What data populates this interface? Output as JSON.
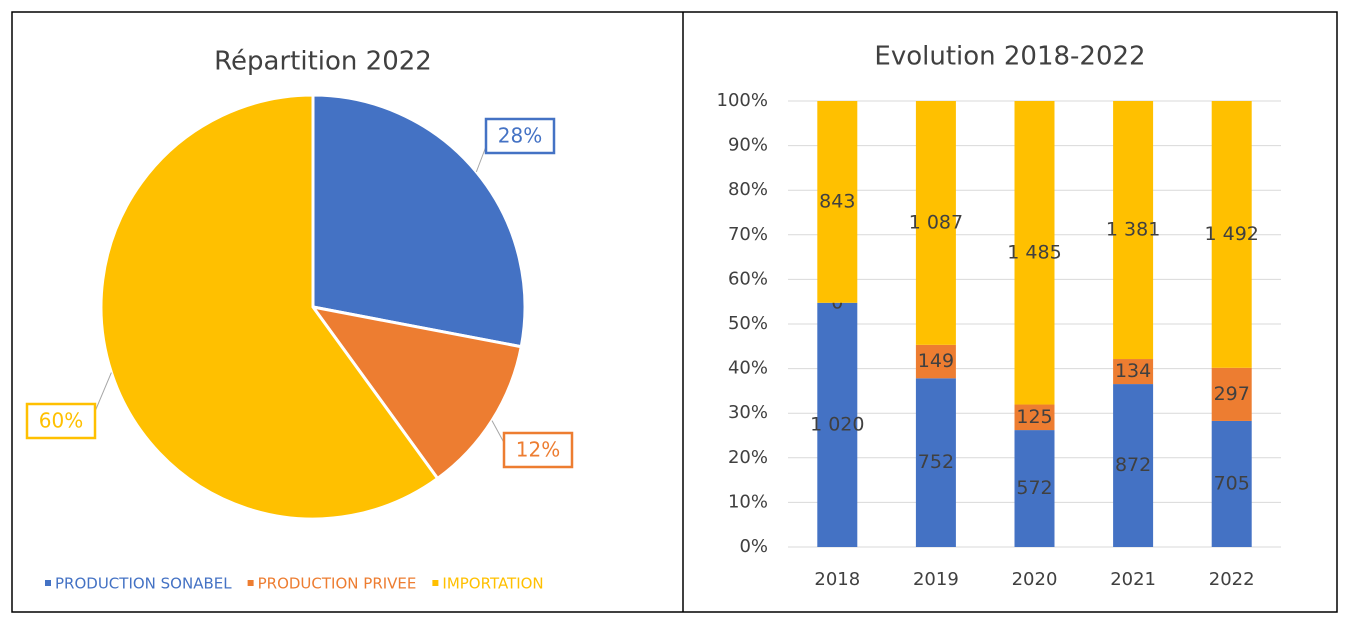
{
  "chart_data": [
    {
      "type": "pie",
      "title": "Répartition 2022",
      "categories": [
        "PRODUCTION SONABEL",
        "PRODUCTION PRIVEE",
        "IMPORTATION"
      ],
      "values": [
        28,
        12,
        60
      ],
      "value_labels": [
        "28%",
        "12%",
        "60%"
      ],
      "colors": [
        "#4472c4",
        "#ed7d31",
        "#ffc000"
      ],
      "legend": "bottom"
    },
    {
      "type": "bar",
      "stacking": "percent",
      "title": "Evolution 2018-2022",
      "categories": [
        "2018",
        "2019",
        "2020",
        "2021",
        "2022"
      ],
      "series": [
        {
          "color": "#4472c4",
          "values": [
            1020,
            752,
            572,
            872,
            705
          ],
          "value_labels": [
            "1 020",
            "752",
            "572",
            "872",
            "705"
          ]
        },
        {
          "color": "#ed7d31",
          "values": [
            0,
            149,
            125,
            134,
            297
          ]
        },
        {
          "color": "#ffc000",
          "values": [
            843,
            1087,
            1485,
            1381,
            1492
          ],
          "value_labels": [
            "843",
            "1 087",
            "1 485",
            "1 381",
            "1 492"
          ]
        }
      ],
      "ylim": [
        0,
        100
      ],
      "yticks": [
        {
          "value": 0,
          "label": "0%"
        },
        {
          "value": 10,
          "label": "10%"
        },
        {
          "value": 20,
          "label": "20%"
        },
        {
          "value": 30,
          "label": "30%"
        },
        {
          "value": 40,
          "label": "40%"
        },
        {
          "value": 50,
          "label": "50%"
        },
        {
          "value": 60,
          "label": "60%"
        },
        {
          "value": 70,
          "label": "70%"
        },
        {
          "value": 80,
          "label": "80%"
        },
        {
          "value": 90,
          "label": "90%"
        },
        {
          "value": 100,
          "label": "100%"
        }
      ],
      "grid": true
    }
  ]
}
